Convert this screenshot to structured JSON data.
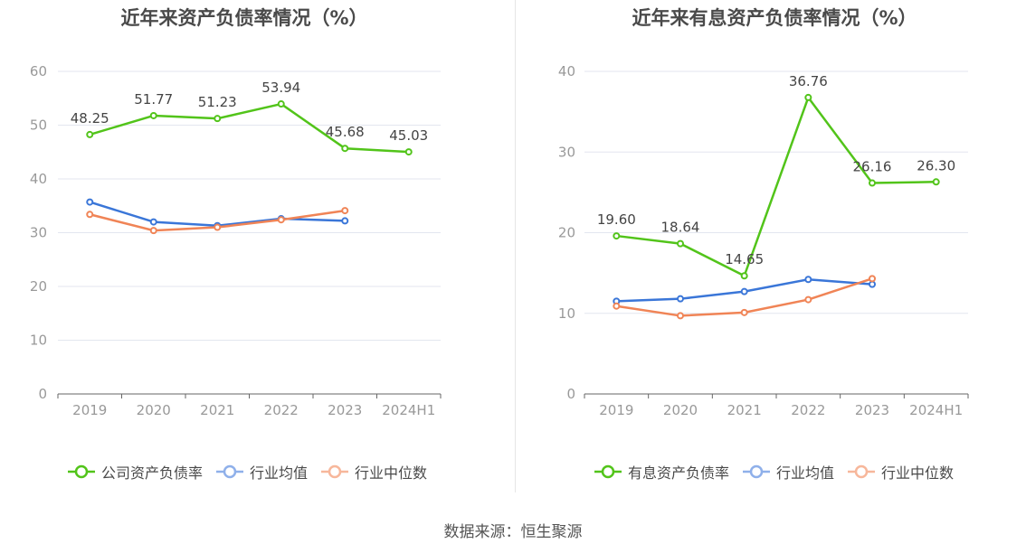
{
  "source_label": "数据来源：恒生聚源",
  "chart_data": [
    {
      "type": "line",
      "title": "近年来资产负债率情况（%）",
      "categories": [
        "2019",
        "2020",
        "2021",
        "2022",
        "2023",
        "2024H1"
      ],
      "ylim": [
        0,
        60
      ],
      "yticks": [
        0,
        10,
        20,
        30,
        40,
        50,
        60
      ],
      "grid": true,
      "legend_position": "bottom",
      "series": [
        {
          "name": "公司资产负债率",
          "color": "#52c41a",
          "values": [
            48.25,
            51.77,
            51.23,
            53.94,
            45.68,
            45.03
          ],
          "labels": [
            "48.25",
            "51.77",
            "51.23",
            "53.94",
            "45.68",
            "45.03"
          ]
        },
        {
          "name": "行业均值",
          "color": "#3a76d8",
          "values": [
            35.7,
            32.0,
            31.3,
            32.6,
            32.2,
            null
          ]
        },
        {
          "name": "行业中位数",
          "color": "#f08456",
          "values": [
            33.4,
            30.4,
            31.0,
            32.4,
            34.1,
            null
          ]
        }
      ]
    },
    {
      "type": "line",
      "title": "近年来有息资产负债率情况（%）",
      "categories": [
        "2019",
        "2020",
        "2021",
        "2022",
        "2023",
        "2024H1"
      ],
      "ylim": [
        0,
        40
      ],
      "yticks": [
        0,
        10,
        20,
        30,
        40
      ],
      "grid": true,
      "legend_position": "bottom",
      "series": [
        {
          "name": "有息资产负债率",
          "color": "#52c41a",
          "values": [
            19.6,
            18.64,
            14.65,
            36.76,
            26.16,
            26.3
          ],
          "labels": [
            "19.60",
            "18.64",
            "14.65",
            "36.76",
            "26.16",
            "26.30"
          ]
        },
        {
          "name": "行业均值",
          "color": "#3a76d8",
          "values": [
            11.5,
            11.8,
            12.7,
            14.2,
            13.6,
            null
          ]
        },
        {
          "name": "行业中位数",
          "color": "#f08456",
          "values": [
            10.9,
            9.7,
            10.1,
            11.7,
            14.3,
            null
          ]
        }
      ]
    }
  ]
}
